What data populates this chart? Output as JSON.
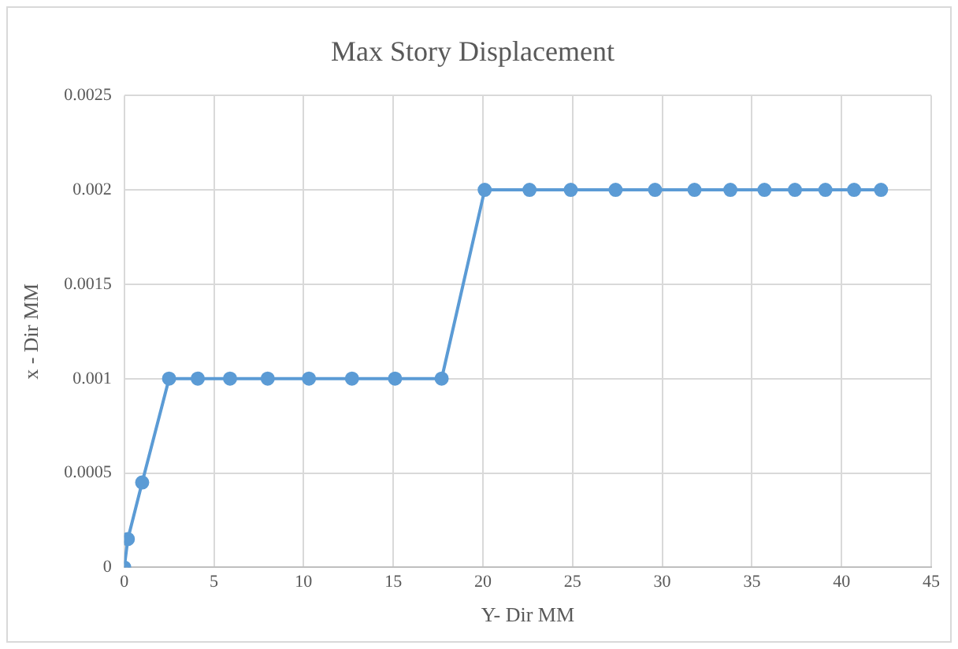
{
  "chart_data": {
    "type": "line",
    "title": "Max Story Displacement",
    "xlabel": "Y- Dir MM",
    "ylabel": "x - Dir MM",
    "x": [
      0,
      0.2,
      1.0,
      2.5,
      4.1,
      5.9,
      8.0,
      10.3,
      12.7,
      15.1,
      17.7,
      20.1,
      22.6,
      24.9,
      27.4,
      29.6,
      31.8,
      33.8,
      35.7,
      37.4,
      39.1,
      40.7,
      42.2
    ],
    "values": [
      0,
      0.00015,
      0.00045,
      0.001,
      0.001,
      0.001,
      0.001,
      0.001,
      0.001,
      0.001,
      0.001,
      0.002,
      0.002,
      0.002,
      0.002,
      0.002,
      0.002,
      0.002,
      0.002,
      0.002,
      0.002,
      0.002,
      0.002
    ],
    "color": "#5b9bd5",
    "marker": "circle",
    "line_style": "solid",
    "grid": true,
    "legend": false,
    "xlim": [
      0,
      45
    ],
    "xticks": [
      0,
      5,
      10,
      15,
      20,
      25,
      30,
      35,
      40,
      45
    ],
    "ylim": [
      0,
      0.0025
    ],
    "yticks": [
      0,
      0.0005,
      0.001,
      0.0015,
      0.002,
      0.0025
    ]
  }
}
